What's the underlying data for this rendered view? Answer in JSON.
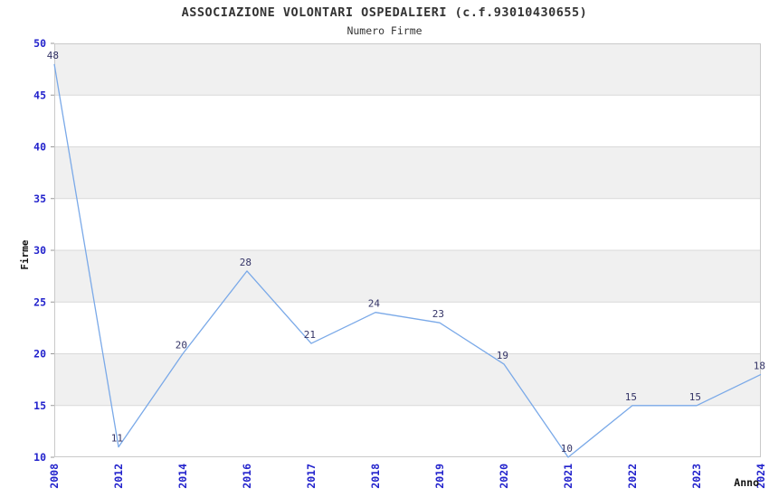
{
  "page": {
    "background": "#FFFFFF"
  },
  "chart_data": {
    "type": "line",
    "title": "ASSOCIAZIONE VOLONTARI OSPEDALIERI (c.f.93010430655)",
    "subtitle": "Numero Firme",
    "xlabel": "Anno",
    "ylabel": "Firme",
    "categories": [
      "2008",
      "2012",
      "2014",
      "2016",
      "2017",
      "2018",
      "2019",
      "2020",
      "2021",
      "2022",
      "2023",
      "2024"
    ],
    "series": [
      {
        "name": "Numero Firme",
        "values": [
          48,
          11,
          20,
          28,
          21,
          24,
          23,
          19,
          10,
          15,
          15,
          18
        ]
      }
    ],
    "data_labels_visible": true,
    "ylim": [
      10,
      50
    ],
    "yticks": [
      10,
      15,
      20,
      25,
      30,
      35,
      40,
      45,
      50
    ],
    "grid": true,
    "legend": "none",
    "band_fill_alternating": [
      "#F0F0F0",
      "#FFFFFF"
    ],
    "colors": {
      "line": "#7AA9E8",
      "data_label": "#333366",
      "tick_label": "#2222CC",
      "axis_title": "#111111",
      "title_text": "#333333",
      "grid_line": "#D9D9D9",
      "plot_border": "#C9C9C9",
      "band_gray": "#F0F0F0",
      "band_white": "#FFFFFF"
    }
  }
}
